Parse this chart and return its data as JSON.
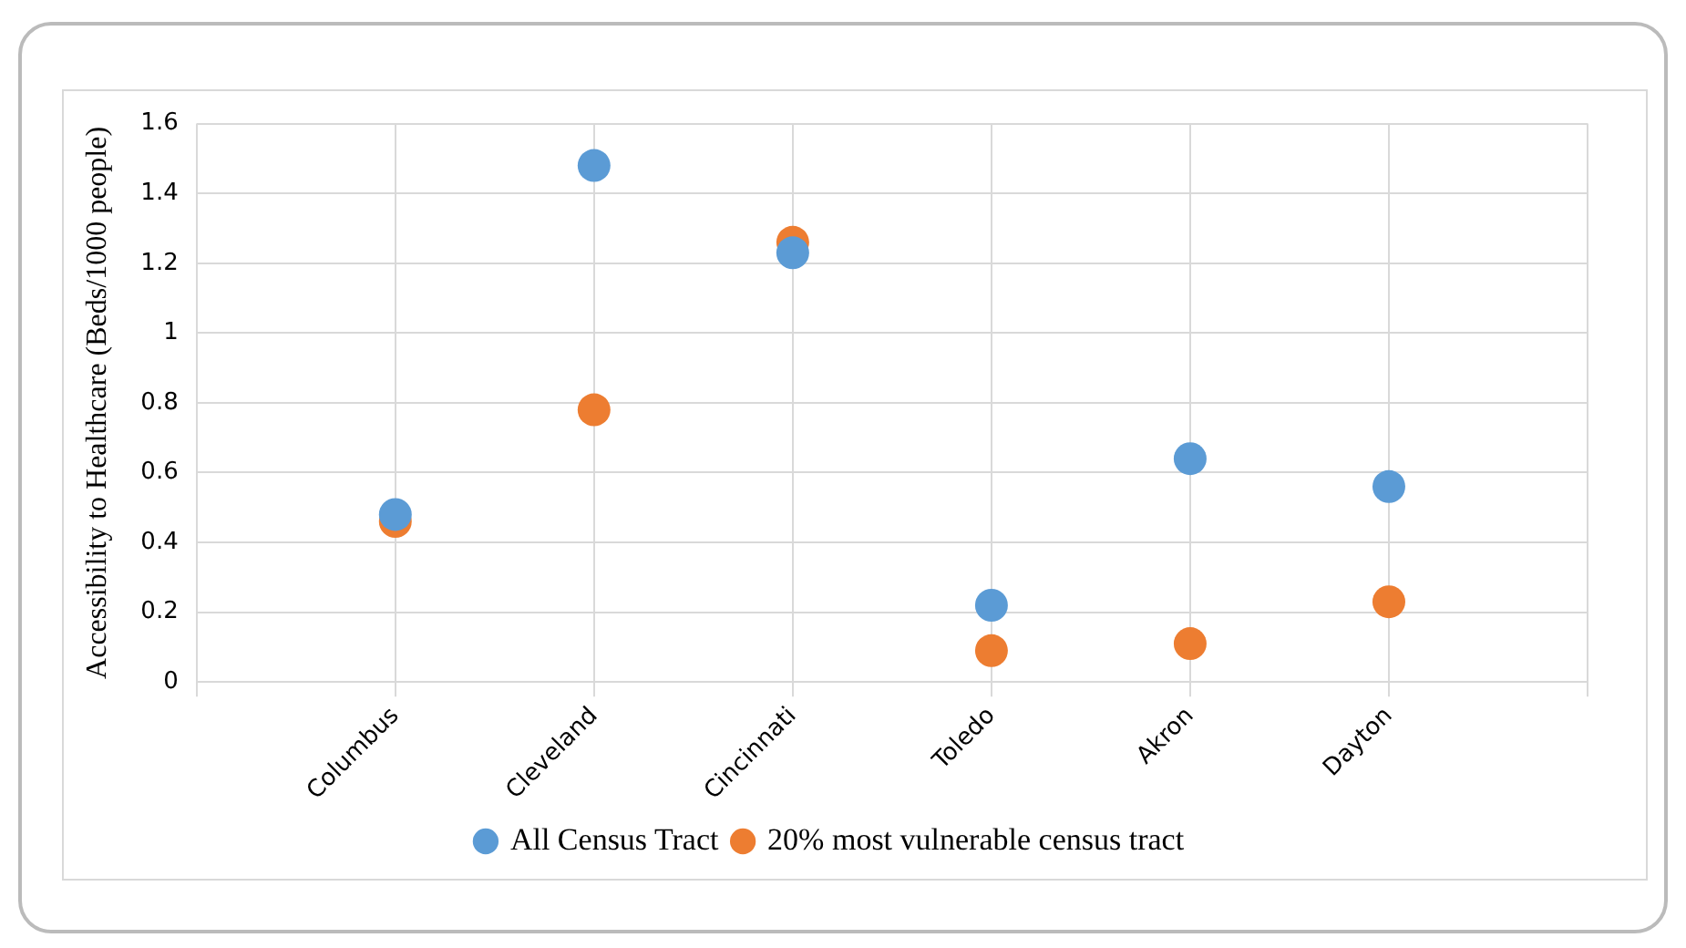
{
  "chart_data": {
    "type": "scatter",
    "ylabel": "Accessibility to Healthcare (Beds/1000 people)",
    "categories": [
      "Columbus",
      "Cleveland",
      "Cincinnati",
      "Toledo",
      "Akron",
      "Dayton"
    ],
    "series": [
      {
        "name": "All Census Tract",
        "color": "#5b9bd5",
        "values": [
          0.48,
          1.48,
          1.23,
          0.22,
          0.64,
          0.56
        ]
      },
      {
        "name": "20% most vulnerable census tract",
        "color": "#ed7d31",
        "values": [
          0.46,
          0.78,
          1.26,
          0.09,
          0.11,
          0.23
        ]
      }
    ],
    "ylim": [
      0,
      1.6
    ],
    "yticks": [
      0,
      0.2,
      0.4,
      0.6,
      0.8,
      1,
      1.2,
      1.4,
      1.6
    ],
    "grid": true,
    "legend": "bottom",
    "marker": "circle"
  }
}
